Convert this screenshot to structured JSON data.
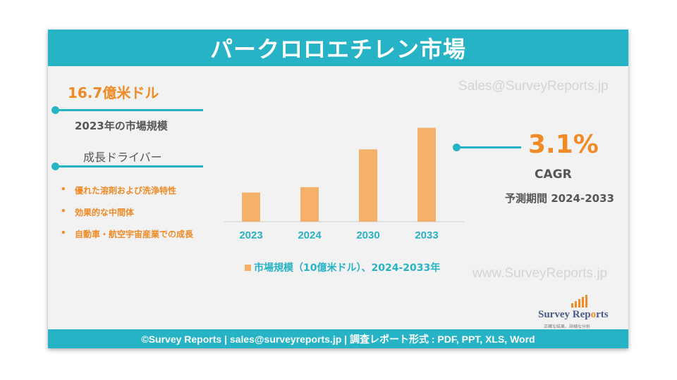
{
  "header": {
    "title": "パークロロエチレン市場"
  },
  "left": {
    "market_value": "16.7億米ドル",
    "market_size_label": "2023年の市場規模",
    "drivers_title": "成長ドライバー",
    "bullet_char": "•",
    "drivers": [
      "優れた溶剤および洗浄特性",
      "効果的な中間体",
      "自動車・航空宇宙産業での成長"
    ]
  },
  "right": {
    "cagr_value": "3.1%",
    "cagr_label": "CAGR",
    "forecast_period": "予測期間 2024-2033"
  },
  "watermarks": {
    "email": "Sales@SurveyReports.jp",
    "site": "www.SurveyReports.jp"
  },
  "logo": {
    "name_part1": "Survey ",
    "name_part2": "Rep",
    "name_o": "o",
    "name_part3": "rts",
    "tagline": "正確な結果、詳細な分析"
  },
  "footer": {
    "text": "©Survey Reports | sales@surveyreports.jp |  調査レポート形式 : PDF, PPT, XLS, Word"
  },
  "colors": {
    "accent": "#27b3c6",
    "orange": "#f08a24",
    "bar": "#f5b06a"
  },
  "chart_data": {
    "type": "bar",
    "categories": [
      "2023",
      "2024",
      "2030",
      "2033"
    ],
    "values": [
      1.67,
      1.72,
      2.07,
      2.27
    ],
    "ylim": [
      1.4,
      2.3
    ],
    "legend": "市場規模（10億米ドル）、2024-2033年",
    "grid": false
  }
}
